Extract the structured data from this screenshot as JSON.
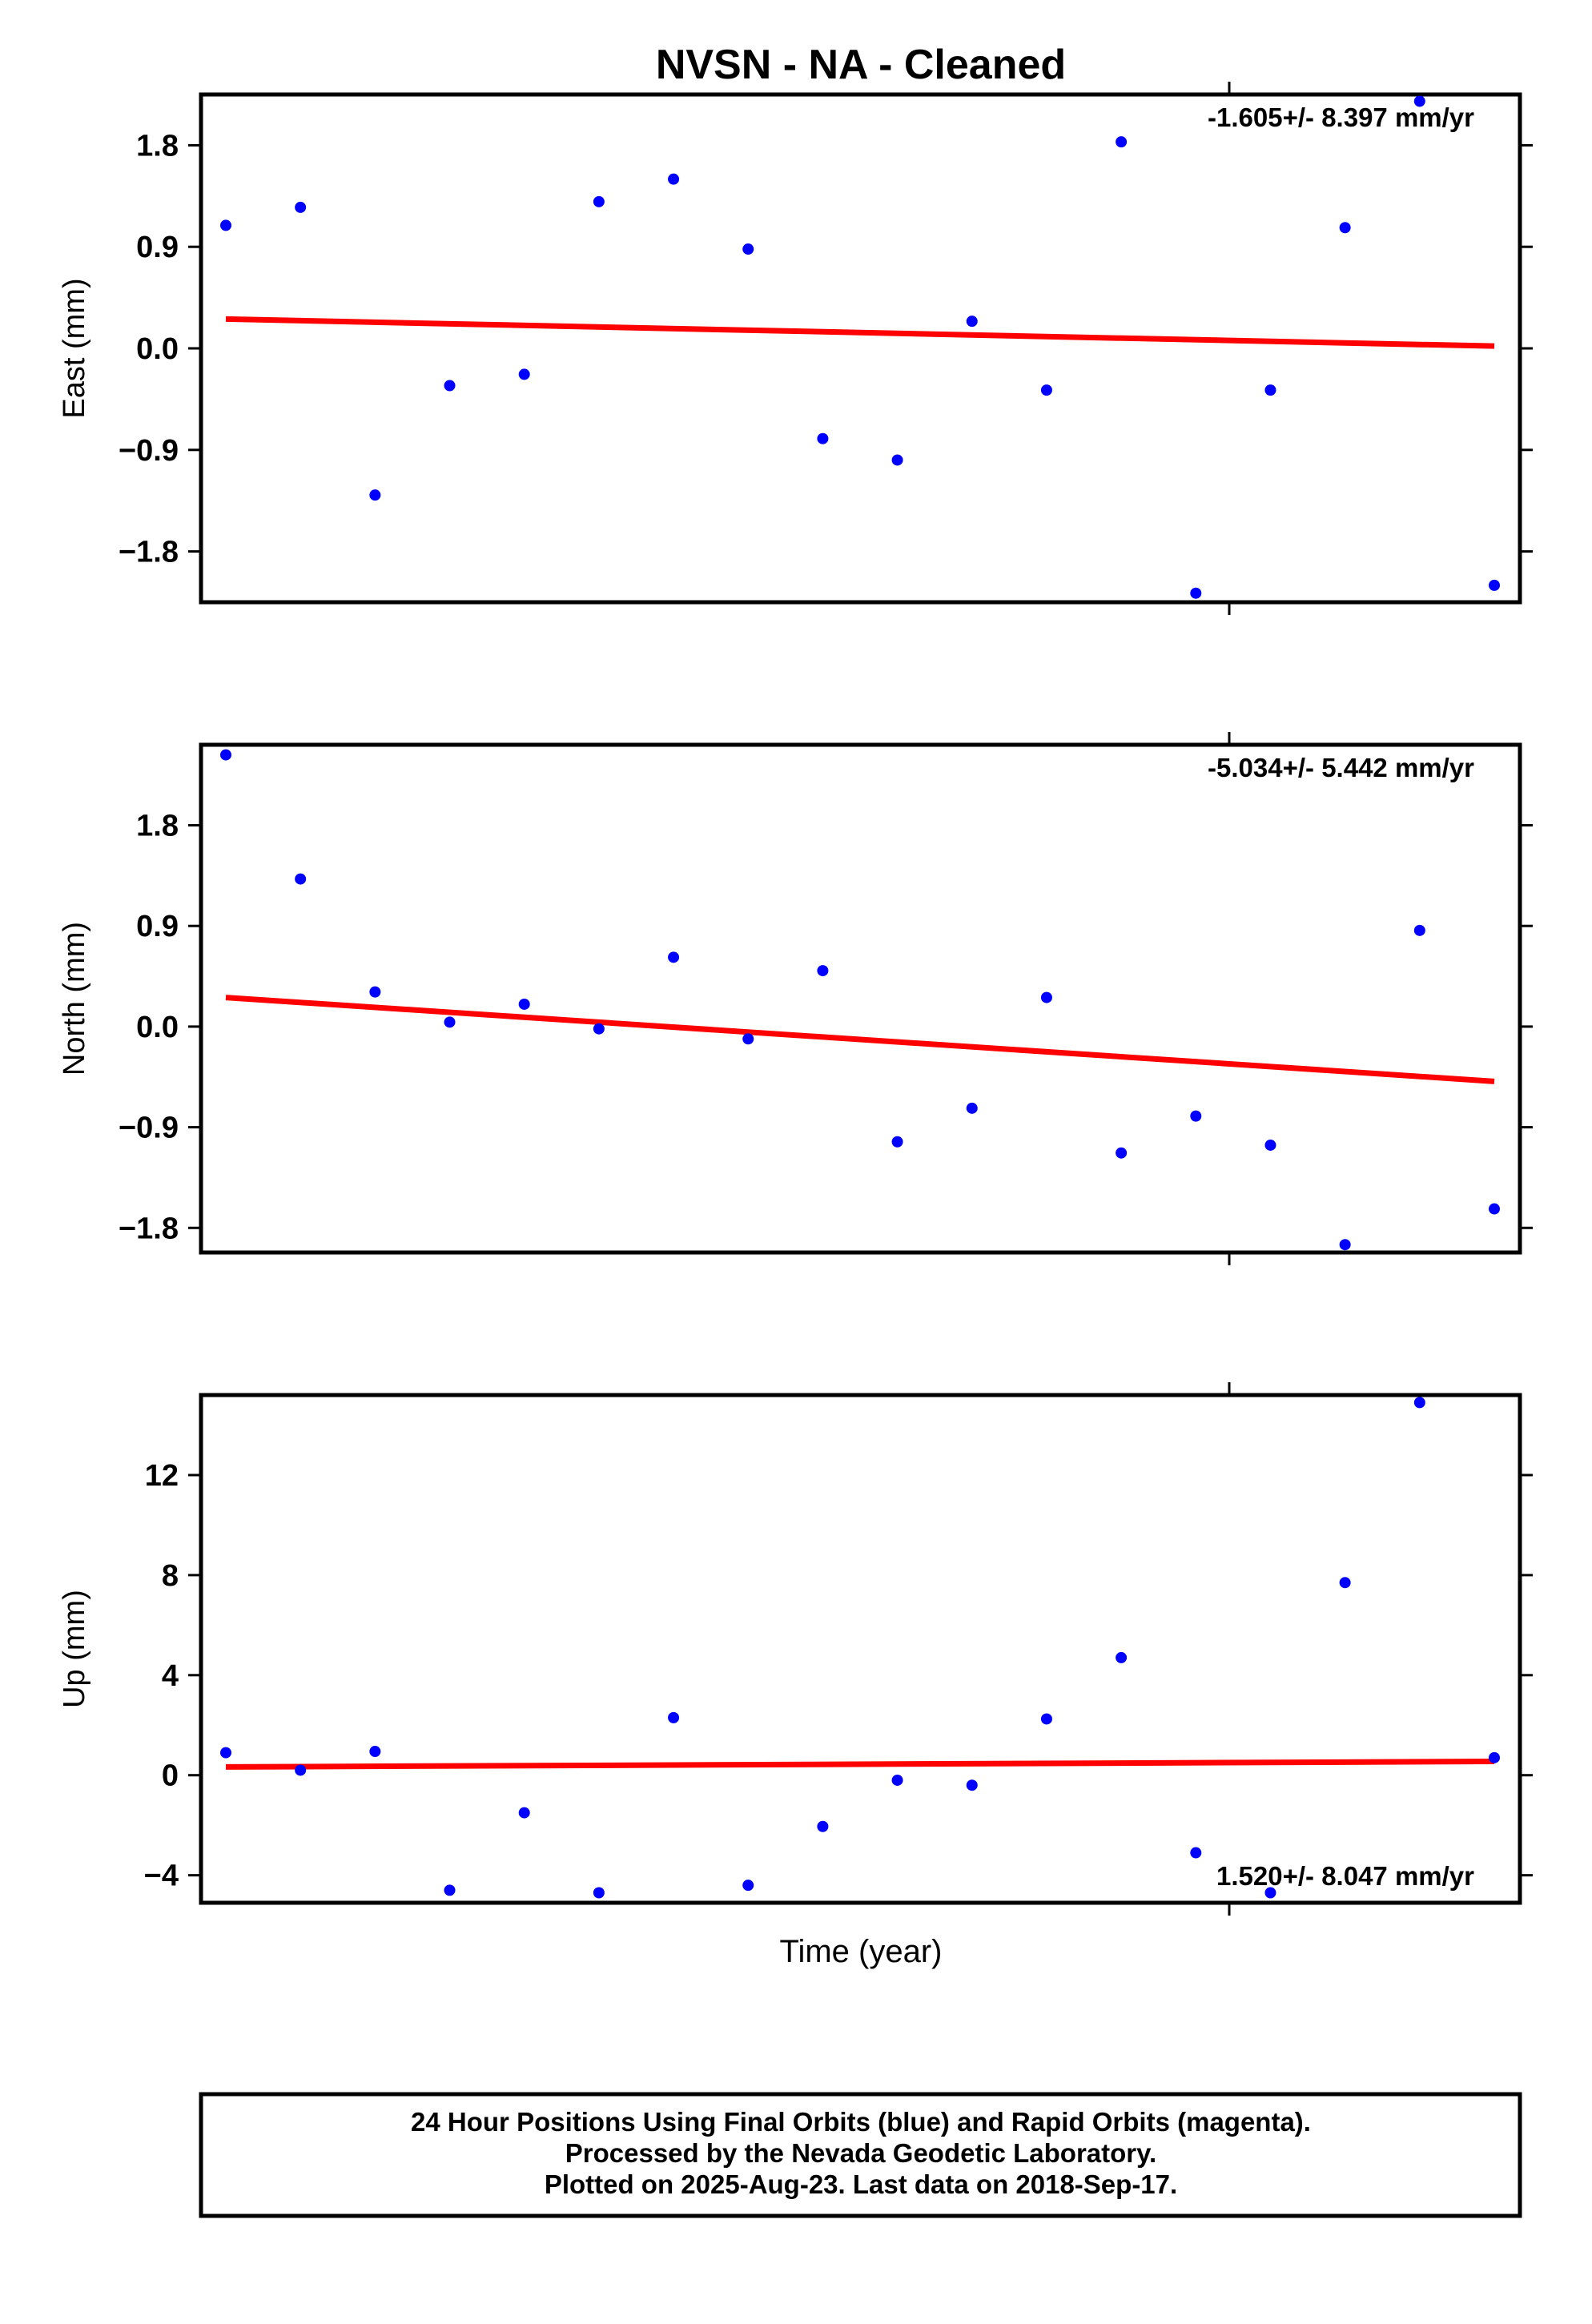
{
  "chart_data": {
    "type": "scatter",
    "title": "NVSN  - NA - Cleaned",
    "xlabel": "Time (year)",
    "panels": [
      {
        "id": "east",
        "ylabel": "East (mm)",
        "ylim": [
          -2.25,
          2.25
        ],
        "yticks": [
          -1.8,
          -0.9,
          0.0,
          0.9,
          1.8
        ],
        "ytick_labels": [
          "−1.8",
          "−0.9",
          "0.0",
          "0.9",
          "1.8"
        ],
        "rate_label": "-1.605+/- 8.397 mm/yr",
        "rate_position": "top-right",
        "points": [
          1.09,
          1.25,
          -1.3,
          -0.33,
          -0.23,
          1.3,
          1.5,
          0.88,
          -0.8,
          -0.99,
          0.24,
          -0.37,
          1.83,
          -2.17,
          -0.37,
          1.07,
          2.19,
          -2.1
        ],
        "trend": [
          0.26,
          0.02
        ]
      },
      {
        "id": "north",
        "ylabel": "North (mm)",
        "ylim": [
          -2.02,
          2.52
        ],
        "yticks": [
          -1.8,
          -0.9,
          0.0,
          0.9,
          1.8
        ],
        "ytick_labels": [
          "−1.8",
          "−0.9",
          "0.0",
          "0.9",
          "1.8"
        ],
        "rate_label": "-5.034+/- 5.442 mm/yr",
        "rate_position": "top-right",
        "points": [
          2.43,
          1.32,
          0.31,
          0.04,
          0.2,
          -0.02,
          0.62,
          -0.11,
          0.5,
          -1.03,
          -0.73,
          0.26,
          -1.13,
          -0.8,
          -1.06,
          -1.95,
          0.86,
          -1.63
        ],
        "trend": [
          0.26,
          -0.49
        ]
      },
      {
        "id": "up",
        "ylabel": "Up (mm)",
        "ylim": [
          -5.1,
          15.2
        ],
        "yticks": [
          -4,
          0,
          4,
          8,
          12
        ],
        "ytick_labels": [
          "−4",
          "0",
          "4",
          "8",
          "12"
        ],
        "rate_label": "1.520+/- 8.047 mm/yr",
        "rate_position": "bottom-right",
        "points": [
          0.9,
          0.2,
          0.95,
          -4.6,
          -1.5,
          -4.7,
          2.3,
          -4.4,
          -2.05,
          -0.2,
          -0.4,
          2.25,
          4.7,
          -3.1,
          -4.7,
          7.7,
          14.9,
          0.7
        ],
        "trend": [
          0.33,
          0.55
        ]
      }
    ],
    "grid": false,
    "colors": {
      "points": "#0000ff",
      "trend": "#ff0000",
      "frame": "#000000"
    }
  },
  "footer": {
    "line1": "24 Hour Positions Using Final Orbits (blue) and Rapid Orbits (magenta).",
    "line2": "Processed by the Nevada Geodetic Laboratory.",
    "line3": "Plotted on 2025-Aug-23. Last data on 2018-Sep-17."
  }
}
